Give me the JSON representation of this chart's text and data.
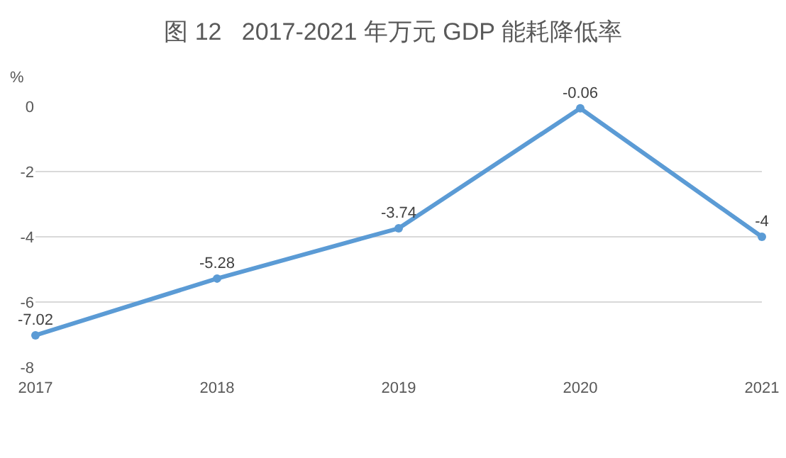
{
  "chart_data": {
    "type": "line",
    "title": "图 12   2017-2021 年万元 GDP 能耗降低率",
    "ylabel": "%",
    "categories": [
      "2017",
      "2018",
      "2019",
      "2020",
      "2021"
    ],
    "series": [
      {
        "color": "#5b9bd5",
        "values": [
          -7.02,
          -5.28,
          -3.74,
          -0.06,
          -4
        ]
      }
    ],
    "ylim": [
      -8,
      0
    ],
    "yticks": [
      -8,
      -6,
      -4,
      -2,
      0
    ],
    "grid": "y",
    "marker": "circle",
    "line_style": "solid",
    "data_labels": true
  }
}
